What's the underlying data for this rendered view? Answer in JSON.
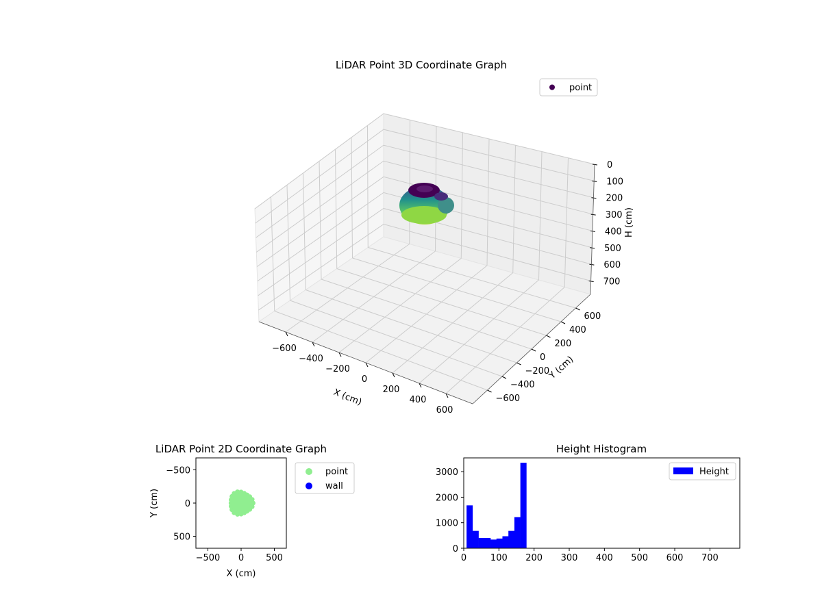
{
  "chart_data": [
    {
      "type": "scatter3d",
      "title": "LiDAR Point 3D Coordinate Graph",
      "xlabel": "X (cm)",
      "ylabel": "Y (cm)",
      "zlabel": "H (cm)",
      "xlim": [
        -700,
        700
      ],
      "ylim": [
        -700,
        700
      ],
      "zlim": [
        0,
        780
      ],
      "zaxis_inverted": true,
      "xticks": [
        "−600",
        "−400",
        "−200",
        "0",
        "200",
        "400",
        "600"
      ],
      "yticks": [
        "−600",
        "−400",
        "−200",
        "0",
        "200",
        "400",
        "600"
      ],
      "zticks": [
        "0",
        "100",
        "200",
        "300",
        "400",
        "500",
        "600",
        "700"
      ],
      "grid": true,
      "colormap": "viridis",
      "legend": {
        "placement": "top-right",
        "entries": [
          {
            "label": "point",
            "color": "#440154"
          }
        ]
      },
      "cluster": {
        "x_range": [
          -180,
          180
        ],
        "y_range": [
          -180,
          180
        ],
        "h_range": [
          0,
          180
        ],
        "top_ring_h": 170
      }
    },
    {
      "type": "scatter",
      "title": "LiDAR Point 2D Coordinate Graph",
      "xlabel": "X (cm)",
      "ylabel": "Y (cm)",
      "xlim": [
        -680,
        680
      ],
      "ylim": [
        -680,
        680
      ],
      "xticks": [
        "−500",
        "0",
        "500"
      ],
      "yticks": [
        "−500",
        "0",
        "500"
      ],
      "series": [
        {
          "name": "point",
          "color": "#90ee90",
          "center": [
            0,
            0
          ],
          "radius": 180
        },
        {
          "name": "wall",
          "color": "#0000ff",
          "points": []
        }
      ],
      "legend": {
        "placement": "outside-right"
      }
    },
    {
      "type": "bar",
      "title": "Height Histogram",
      "xlabel": "",
      "ylabel": "",
      "xlim": [
        0,
        785
      ],
      "ylim": [
        0,
        3540
      ],
      "xticks": [
        "0",
        "100",
        "200",
        "300",
        "400",
        "500",
        "600",
        "700"
      ],
      "yticks": [
        "0",
        "1000",
        "2000",
        "3000"
      ],
      "series_name": "Height",
      "color": "#0000ff",
      "bin_edges": [
        8,
        25,
        42,
        59,
        76,
        93,
        110,
        127,
        144,
        161,
        178
      ],
      "counts": [
        1680,
        680,
        400,
        400,
        340,
        380,
        470,
        680,
        1220,
        3350
      ],
      "legend": {
        "placement": "top-right"
      }
    }
  ]
}
